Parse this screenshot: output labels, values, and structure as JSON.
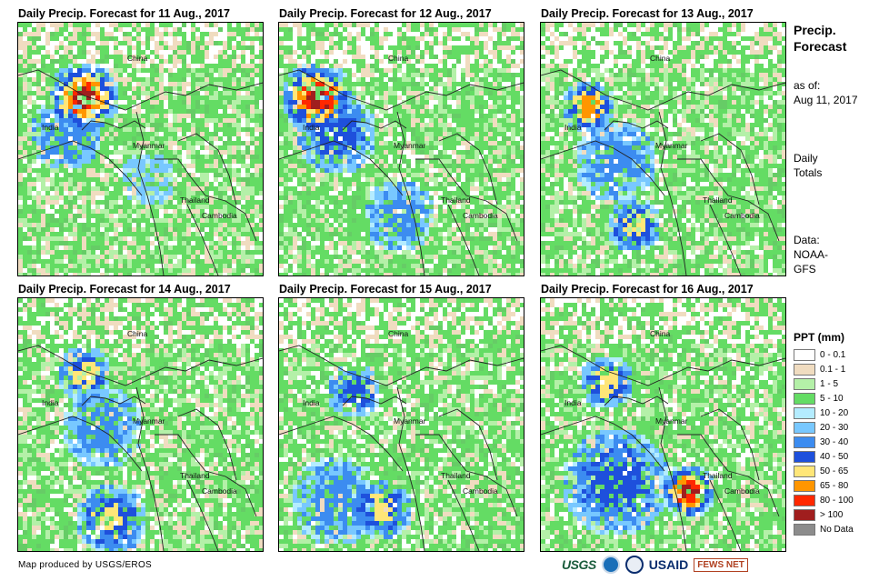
{
  "panels": [
    {
      "title": "Daily Precip. Forecast for 11 Aug., 2017"
    },
    {
      "title": "Daily Precip. Forecast for 12 Aug., 2017"
    },
    {
      "title": "Daily Precip. Forecast for 13 Aug., 2017"
    },
    {
      "title": "Daily Precip. Forecast for 14 Aug., 2017"
    },
    {
      "title": "Daily Precip. Forecast for 15 Aug., 2017"
    },
    {
      "title": "Daily Precip. Forecast for 16 Aug., 2017"
    }
  ],
  "map_labels": {
    "china": "China",
    "india": "India",
    "myanmar": "Myanmar",
    "thailand": "Thailand",
    "cambodia": "Cambodia"
  },
  "side": {
    "title_line1": "Precip.",
    "title_line2": "Forecast",
    "asof_line1": "as of:",
    "asof_line2": "Aug 11, 2017",
    "daily_line1": "Daily",
    "daily_line2": "Totals",
    "data_line1": "Data:",
    "data_line2": "NOAA-",
    "data_line3": "GFS"
  },
  "legend": {
    "title": "PPT (mm)",
    "items": [
      {
        "label": "0 - 0.1",
        "color": "#ffffff"
      },
      {
        "label": "0.1 - 1",
        "color": "#f0dcc0"
      },
      {
        "label": "1 - 5",
        "color": "#b4f0a8"
      },
      {
        "label": "5 - 10",
        "color": "#64dc64"
      },
      {
        "label": "10 - 20",
        "color": "#b4ecff"
      },
      {
        "label": "20 - 30",
        "color": "#78c8ff"
      },
      {
        "label": "30 - 40",
        "color": "#3c8cf0"
      },
      {
        "label": "40 - 50",
        "color": "#1e50dc"
      },
      {
        "label": "50 - 65",
        "color": "#ffe678"
      },
      {
        "label": "65 - 80",
        "color": "#ff9600"
      },
      {
        "label": "80 - 100",
        "color": "#ff2800"
      },
      {
        "label": "> 100",
        "color": "#a01e1e"
      },
      {
        "label": "No Data",
        "color": "#8c8c8c"
      }
    ]
  },
  "credit": "Map produced by USGS/EROS",
  "logos": {
    "usgs": "USGS",
    "usaid": "USAID",
    "fewsnet": "FEWS NET"
  }
}
